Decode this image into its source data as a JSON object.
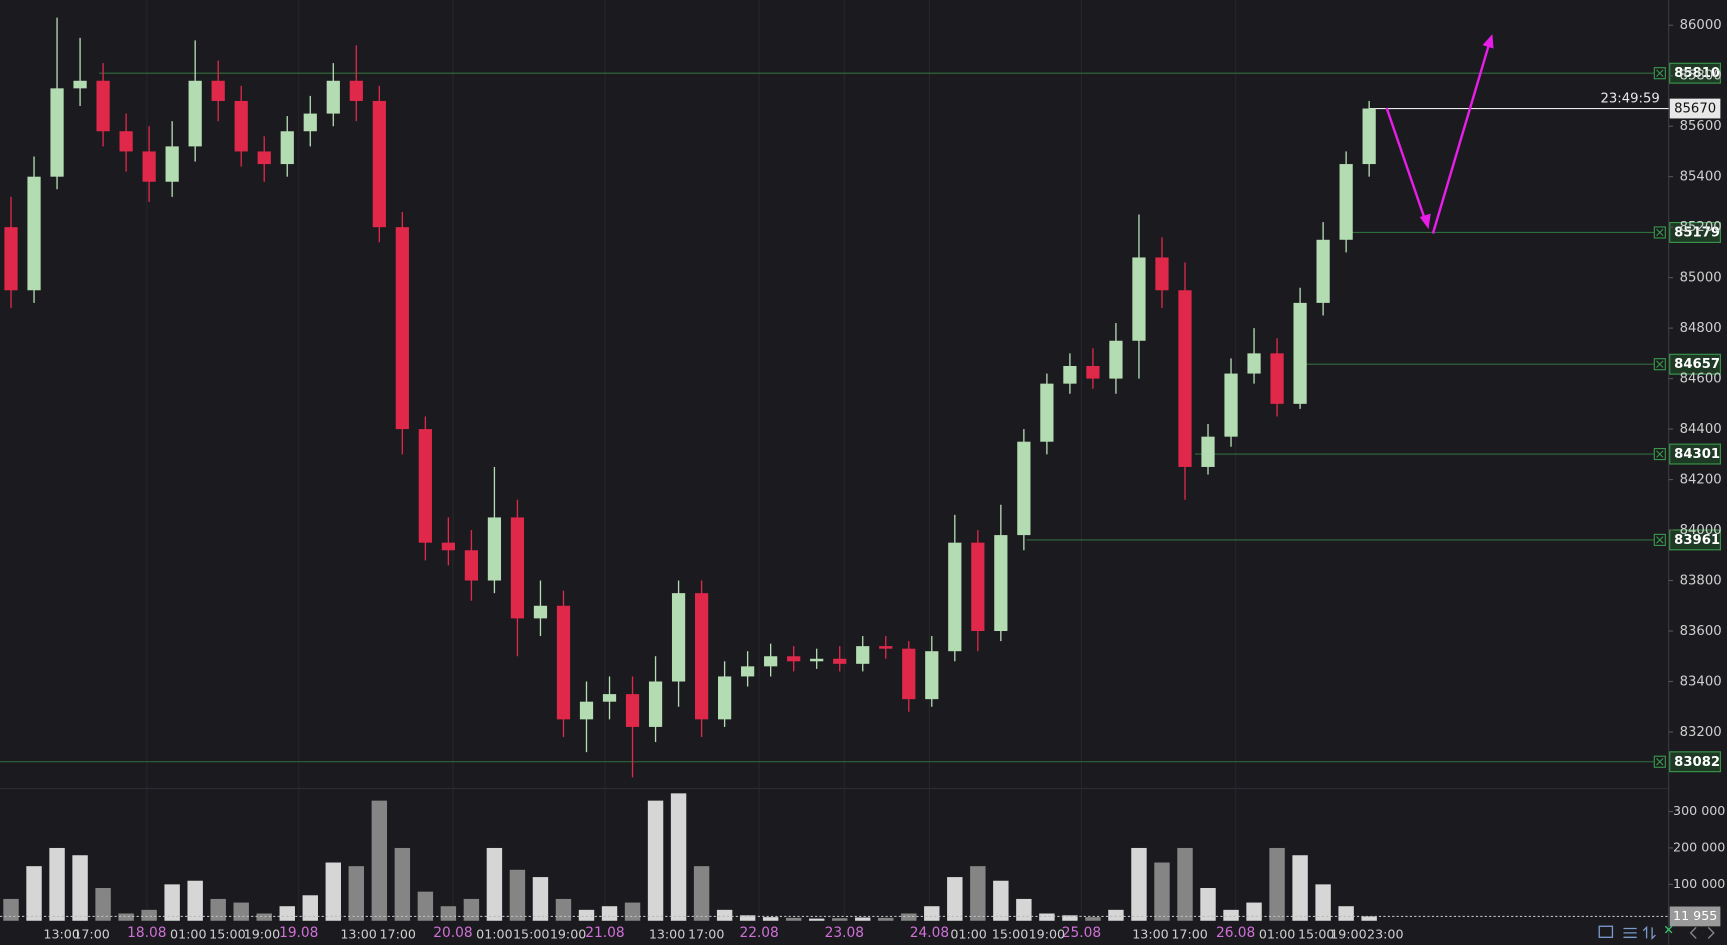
{
  "chart_data": {
    "type": "candlestick",
    "open": [
      85200,
      84950,
      85400,
      85750,
      85780,
      85580,
      85500,
      85380,
      85520,
      85780,
      85700,
      85500,
      85450,
      85580,
      85650,
      85780,
      85700,
      85200,
      84400,
      83950,
      83920,
      83800,
      84050,
      83650,
      83700,
      83250,
      83320,
      83350,
      83220,
      83400,
      83750,
      83250,
      83420,
      83460,
      83500,
      83480,
      83490,
      83470,
      83540,
      83530,
      83330,
      83520,
      83950,
      83600,
      83980,
      84350,
      84580,
      84650,
      84600,
      84750,
      85080,
      84950,
      84250,
      84370,
      84620,
      84700,
      84500,
      84900,
      85150,
      85450
    ],
    "high": [
      85320,
      85480,
      86030,
      85950,
      85850,
      85650,
      85600,
      85620,
      85940,
      85860,
      85760,
      85560,
      85640,
      85720,
      85850,
      85920,
      85760,
      85260,
      84450,
      84050,
      84000,
      84250,
      84120,
      83800,
      83760,
      83400,
      83420,
      83420,
      83500,
      83800,
      83800,
      83480,
      83520,
      83550,
      83540,
      83530,
      83540,
      83580,
      83580,
      83560,
      83580,
      84060,
      84000,
      84100,
      84400,
      84620,
      84700,
      84720,
      84820,
      85250,
      85160,
      85060,
      84420,
      84680,
      84800,
      84760,
      84960,
      85220,
      85500,
      85700
    ],
    "low": [
      84880,
      84900,
      85350,
      85680,
      85520,
      85420,
      85300,
      85320,
      85460,
      85620,
      85440,
      85380,
      85400,
      85520,
      85600,
      85620,
      85140,
      84300,
      83880,
      83860,
      83720,
      83750,
      83500,
      83580,
      83180,
      83120,
      83250,
      83020,
      83160,
      83300,
      83180,
      83220,
      83380,
      83420,
      83440,
      83450,
      83440,
      83440,
      83490,
      83280,
      83300,
      83480,
      83520,
      83560,
      83920,
      84300,
      84540,
      84560,
      84540,
      84600,
      84880,
      84120,
      84220,
      84330,
      84580,
      84450,
      84480,
      84850,
      85100,
      85400
    ],
    "close": [
      84950,
      85400,
      85750,
      85780,
      85580,
      85500,
      85380,
      85520,
      85780,
      85700,
      85500,
      85450,
      85580,
      85650,
      85780,
      85700,
      85200,
      84400,
      83950,
      83920,
      83800,
      84050,
      83650,
      83700,
      83250,
      83320,
      83350,
      83220,
      83400,
      83750,
      83250,
      83420,
      83460,
      83500,
      83480,
      83490,
      83470,
      83540,
      83530,
      83330,
      83520,
      83950,
      83600,
      83980,
      84350,
      84580,
      84650,
      84600,
      84750,
      85080,
      84950,
      84250,
      84370,
      84620,
      84700,
      84500,
      84900,
      85150,
      85450,
      85670
    ],
    "volume": [
      60000,
      150000,
      200000,
      180000,
      90000,
      20000,
      30000,
      100000,
      110000,
      60000,
      50000,
      20000,
      40000,
      70000,
      160000,
      150000,
      330000,
      200000,
      80000,
      40000,
      60000,
      200000,
      140000,
      120000,
      60000,
      30000,
      40000,
      50000,
      330000,
      350000,
      150000,
      30000,
      15000,
      10000,
      8000,
      6000,
      7000,
      9000,
      8000,
      20000,
      40000,
      120000,
      150000,
      110000,
      60000,
      20000,
      15000,
      10000,
      30000,
      200000,
      160000,
      200000,
      90000,
      30000,
      50000,
      200000,
      180000,
      100000,
      40000,
      11955
    ],
    "ylim": [
      82980,
      86100
    ],
    "yticks": [
      83200,
      83400,
      83600,
      83800,
      84000,
      84200,
      84400,
      84600,
      84800,
      85000,
      85200,
      85400,
      85600,
      85800,
      86000
    ],
    "volume_ylim": [
      0,
      357000
    ],
    "volume_ticks": [
      {
        "value": 100000,
        "label": "100 000"
      },
      {
        "value": 200000,
        "label": "200 000"
      },
      {
        "value": 300000,
        "label": "300 000"
      }
    ],
    "current_volume": {
      "value": 11955,
      "label": "11 955"
    },
    "levels": [
      85810,
      85179,
      84657,
      84301,
      83961,
      83082
    ],
    "last_price": 85670,
    "countdown": "23:49:59",
    "day_ticks": [
      {
        "value": 5.9,
        "label": "18.08"
      },
      {
        "value": 12.5,
        "label": "19.08"
      },
      {
        "value": 19.2,
        "label": "20.08"
      },
      {
        "value": 25.8,
        "label": "21.08"
      },
      {
        "value": 32.5,
        "label": "22.08"
      },
      {
        "value": 36.2,
        "label": "23.08"
      },
      {
        "value": 39.9,
        "label": "24.08"
      },
      {
        "value": 46.5,
        "label": "25.08"
      },
      {
        "value": 53.2,
        "label": "26.08"
      }
    ],
    "hour_ticks": [
      {
        "value": 2.2,
        "label": "13:00"
      },
      {
        "value": 3.5,
        "label": "17:00"
      },
      {
        "value": 7.7,
        "label": "01:00"
      },
      {
        "value": 9.4,
        "label": "15:00"
      },
      {
        "value": 10.9,
        "label": "19:00"
      },
      {
        "value": 15.1,
        "label": "13:00"
      },
      {
        "value": 16.8,
        "label": "17:00"
      },
      {
        "value": 21.0,
        "label": "01:00"
      },
      {
        "value": 22.6,
        "label": "15:00"
      },
      {
        "value": 24.2,
        "label": "19:00"
      },
      {
        "value": 28.5,
        "label": "13:00"
      },
      {
        "value": 30.2,
        "label": "17:00"
      },
      {
        "value": 41.6,
        "label": "01:00"
      },
      {
        "value": 43.4,
        "label": "15:00"
      },
      {
        "value": 45.0,
        "label": "19:00"
      },
      {
        "value": 49.5,
        "label": "13:00"
      },
      {
        "value": 51.2,
        "label": "17:00"
      },
      {
        "value": 55.0,
        "label": "01:00"
      },
      {
        "value": 56.7,
        "label": "15:00"
      },
      {
        "value": 58.1,
        "label": "19:00"
      },
      {
        "value": 59.7,
        "label": "23:00"
      }
    ],
    "colors": {
      "up": "#b4dcb2",
      "down": "#e0284a",
      "volume_up": "#d6d6d6",
      "volume_down": "#858585",
      "level": "#2f6e3b"
    }
  }
}
